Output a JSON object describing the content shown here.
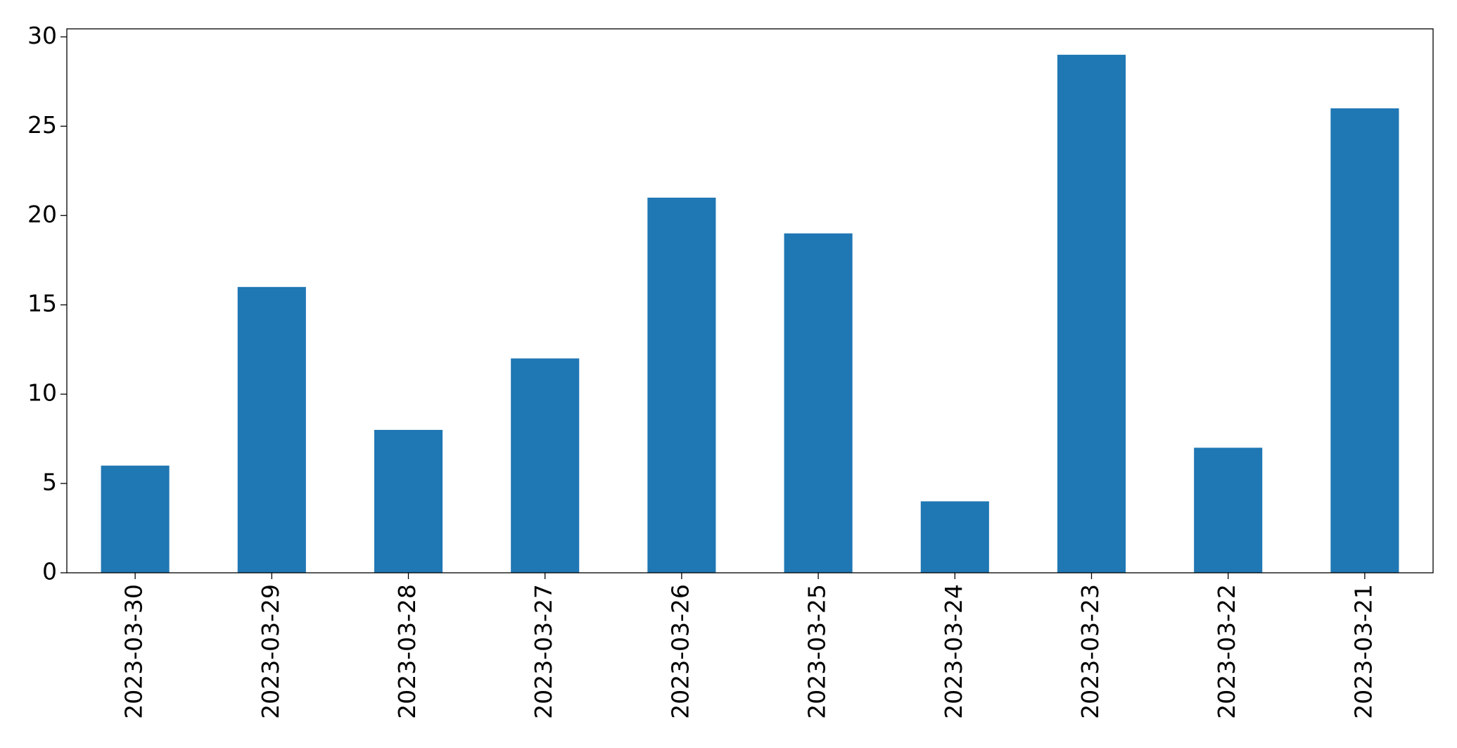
{
  "chart_data": {
    "type": "bar",
    "categories": [
      "2023-03-30",
      "2023-03-29",
      "2023-03-28",
      "2023-03-27",
      "2023-03-26",
      "2023-03-25",
      "2023-03-24",
      "2023-03-23",
      "2023-03-22",
      "2023-03-21"
    ],
    "values": [
      6,
      16,
      8,
      12,
      21,
      19,
      4,
      29,
      7,
      26
    ],
    "color": "#1f77b4",
    "ylim": [
      0,
      30.45
    ],
    "yticks": [
      0,
      5,
      10,
      15,
      20,
      25,
      30
    ],
    "grid": false
  }
}
